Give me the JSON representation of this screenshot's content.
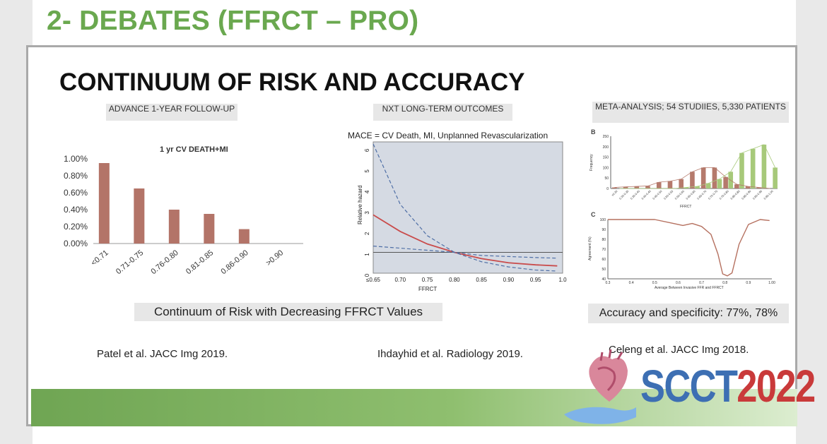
{
  "deck_title": "2- DEBATES (FFRCT – PRO)",
  "slide_title": "CONTINUUM OF RISK AND ACCURACY",
  "panels": {
    "left": {
      "header": "ADVANCE 1-YEAR FOLLOW-UP",
      "chart_title": "1 yr CV DEATH+MI",
      "caption": "Continuum of Risk with Decreasing FFRCT Values",
      "citation": "Patel et al. JACC Img 2019."
    },
    "middle": {
      "header": "NXT LONG-TERM OUTCOMES",
      "chart_title": "MACE = CV Death, MI, Unplanned Revascularization",
      "citation": "Ihdayhid et al. Radiology 2019."
    },
    "right": {
      "header": "META-ANALYSIS; 54 STUDIIES, 5,330 PATIENTS",
      "caption": "Accuracy and specificity: 77%, 78%",
      "citation": "Celeng et al. JACC Img 2018.",
      "label_b": "B",
      "label_c": "C"
    }
  },
  "chart_data": [
    {
      "type": "bar",
      "title": "1 yr CV DEATH+MI",
      "categories": [
        "<0.71",
        "0.71-0.75",
        "0.76-0.80",
        "0.81-0.85",
        "0.86-0.90",
        ">0.90"
      ],
      "values": [
        0.95,
        0.65,
        0.4,
        0.35,
        0.17,
        0
      ],
      "ylim": [
        0,
        1.0
      ],
      "y_ticks": [
        "0.00%",
        "0.20%",
        "0.40%",
        "0.60%",
        "0.80%",
        "1.00%"
      ],
      "color": "#b37468"
    },
    {
      "type": "line",
      "title": "MACE = CV Death, MI, Unplanned Revascularization",
      "xlabel": "FFRCT",
      "ylabel": "Relative hazard",
      "x_ticks": [
        "≤0.65",
        "0.70",
        "0.75",
        "0.80",
        "0.85",
        "0.90",
        "0.95",
        "1.0"
      ],
      "y_ticks": [
        "0",
        "1",
        "2",
        "3",
        "4",
        "5",
        "6"
      ],
      "xlim": [
        0.65,
        1.0
      ],
      "ylim": [
        0,
        6.3
      ],
      "series": [
        {
          "role": "estimate",
          "x": [
            0.65,
            0.7,
            0.75,
            0.8,
            0.85,
            0.9,
            0.95,
            0.99
          ],
          "y": [
            2.8,
            2.0,
            1.4,
            1.0,
            0.7,
            0.5,
            0.4,
            0.35
          ]
        },
        {
          "role": "upper",
          "x": [
            0.65,
            0.7,
            0.75,
            0.8,
            0.85,
            0.9,
            0.95,
            0.99
          ],
          "y": [
            6.2,
            3.3,
            1.8,
            1.0,
            0.85,
            0.8,
            0.75,
            0.72
          ]
        },
        {
          "role": "lower",
          "x": [
            0.65,
            0.7,
            0.75,
            0.8,
            0.85,
            0.9,
            0.95,
            0.99
          ],
          "y": [
            1.3,
            1.2,
            1.1,
            1.0,
            0.55,
            0.3,
            0.15,
            0.1
          ]
        }
      ],
      "reference_line": 1.0,
      "colors": {
        "estimate": "#c94b4b",
        "bounds": "#4f6fa6",
        "background": "#d5dae3"
      }
    },
    {
      "type": "bar",
      "title": "",
      "ylabel": "Frequency",
      "xlabel": "FFRCT",
      "categories": [
        "≤0.30",
        "0.30-0.35",
        "0.35-0.40",
        "0.40-0.45",
        "0.45-0.50",
        "0.50-0.55",
        "0.55-0.60",
        "0.60-0.65",
        "0.65-0.70",
        "0.70-0.75",
        "0.75-0.80",
        "0.80-0.85",
        "0.85-0.90",
        "0.90-0.95",
        "0.95-1.00"
      ],
      "y_ticks": [
        "0",
        "50",
        "100",
        "150",
        "200",
        "250"
      ],
      "ylim": [
        0,
        250
      ],
      "series": [
        {
          "values": [
            5,
            8,
            10,
            12,
            30,
            35,
            45,
            80,
            100,
            100,
            55,
            20,
            10,
            5,
            0
          ],
          "color": "#b57a6c"
        },
        {
          "values": [
            0,
            0,
            0,
            0,
            0,
            0,
            5,
            10,
            25,
            45,
            80,
            170,
            190,
            210,
            100
          ],
          "color": "#a7c97a"
        }
      ]
    },
    {
      "type": "line",
      "title": "",
      "ylabel": "Agreement (%)",
      "xlabel": "Average Between Invasive FFR and FFRCT",
      "x_ticks": [
        "0.3",
        "0.4",
        "0.5",
        "0.6",
        "0.7",
        "0.8",
        "0.9",
        "1.00"
      ],
      "y_ticks": [
        "40",
        "50",
        "60",
        "70",
        "80",
        "90",
        "100"
      ],
      "xlim": [
        0.3,
        1.0
      ],
      "ylim": [
        40,
        100
      ],
      "series": [
        {
          "x": [
            0.3,
            0.5,
            0.58,
            0.62,
            0.66,
            0.7,
            0.74,
            0.77,
            0.79,
            0.81,
            0.83,
            0.86,
            0.9,
            0.95,
            0.99
          ],
          "y": [
            100,
            100,
            96,
            94,
            96,
            93,
            85,
            65,
            45,
            43,
            46,
            75,
            95,
            100,
            99
          ],
          "color": "#b5705f"
        }
      ]
    }
  ],
  "logo": {
    "part1": "SCCT",
    "part2": "2022"
  }
}
